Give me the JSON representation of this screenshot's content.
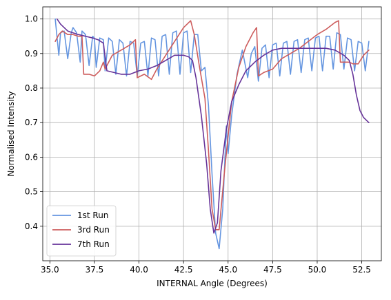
{
  "chart_data": {
    "type": "line",
    "title": "",
    "xlabel": "INTERNAL Angle (Degrees)",
    "ylabel": "Normalised Intensity",
    "xlim": [
      34.6,
      53.6
    ],
    "ylim": [
      0.3,
      1.035
    ],
    "xticks": [
      35.0,
      37.5,
      40.0,
      42.5,
      45.0,
      47.5,
      50.0,
      52.5
    ],
    "xtick_labels": [
      "35.0",
      "37.5",
      "40.0",
      "42.5",
      "45.0",
      "47.5",
      "50.0",
      "52.5"
    ],
    "yticks": [
      0.4,
      0.5,
      0.6,
      0.7,
      0.8,
      0.9,
      1.0
    ],
    "ytick_labels": [
      "0.4",
      "0.5",
      "0.6",
      "0.7",
      "0.8",
      "0.9",
      "1.0"
    ],
    "grid": true,
    "legend": {
      "position": "lower-left",
      "entries": [
        "1st Run",
        "3rd Run",
        "7th Run"
      ]
    },
    "series": [
      {
        "name": "1st Run",
        "color": "#6495e0",
        "x": [
          35.3,
          35.5,
          35.6,
          35.8,
          36.0,
          36.2,
          36.3,
          36.5,
          36.7,
          36.8,
          37.0,
          37.2,
          37.4,
          37.5,
          37.6,
          37.8,
          38.0,
          38.1,
          38.3,
          38.5,
          38.7,
          38.9,
          39.1,
          39.3,
          39.5,
          39.7,
          39.9,
          40.1,
          40.3,
          40.5,
          40.7,
          40.9,
          41.1,
          41.3,
          41.5,
          41.7,
          41.9,
          42.1,
          42.3,
          42.5,
          42.7,
          42.9,
          43.1,
          43.3,
          43.5,
          43.7,
          43.9,
          44.1,
          44.3,
          44.5,
          44.7,
          44.9,
          45.0,
          45.2,
          45.5,
          45.8,
          46.1,
          46.3,
          46.5,
          46.7,
          46.9,
          47.1,
          47.3,
          47.5,
          47.7,
          47.9,
          48.1,
          48.3,
          48.5,
          48.7,
          48.9,
          49.1,
          49.3,
          49.5,
          49.7,
          49.9,
          50.1,
          50.3,
          50.5,
          50.7,
          50.9,
          51.1,
          51.3,
          51.5,
          51.7,
          51.9,
          52.1,
          52.3,
          52.5,
          52.7,
          52.9
        ],
        "y": [
          1.0,
          0.895,
          0.96,
          0.965,
          0.885,
          0.96,
          0.975,
          0.96,
          0.875,
          0.965,
          0.955,
          0.865,
          0.95,
          0.945,
          0.86,
          0.945,
          0.94,
          0.85,
          0.945,
          0.935,
          0.84,
          0.94,
          0.93,
          0.835,
          0.935,
          0.93,
          0.835,
          0.93,
          0.935,
          0.835,
          0.945,
          0.94,
          0.835,
          0.95,
          0.955,
          0.84,
          0.96,
          0.965,
          0.84,
          0.96,
          0.965,
          0.845,
          0.955,
          0.955,
          0.85,
          0.86,
          0.75,
          0.55,
          0.38,
          0.335,
          0.45,
          0.69,
          0.61,
          0.72,
          0.84,
          0.91,
          0.83,
          0.9,
          0.92,
          0.82,
          0.915,
          0.925,
          0.83,
          0.925,
          0.93,
          0.835,
          0.93,
          0.935,
          0.84,
          0.935,
          0.94,
          0.845,
          0.94,
          0.945,
          0.85,
          0.945,
          0.95,
          0.85,
          0.95,
          0.95,
          0.855,
          0.96,
          0.955,
          0.855,
          0.945,
          0.94,
          0.85,
          0.935,
          0.93,
          0.85,
          0.935
        ]
      },
      {
        "name": "3rd Run",
        "color": "#cd5c5c",
        "x": [
          35.3,
          35.5,
          35.7,
          36.0,
          36.3,
          36.6,
          36.8,
          36.9,
          37.2,
          37.5,
          37.8,
          38.0,
          38.1,
          38.5,
          39.0,
          39.5,
          39.8,
          39.9,
          40.3,
          40.7,
          41.0,
          41.5,
          42.0,
          42.5,
          42.9,
          43.1,
          43.4,
          43.7,
          43.9,
          44.1,
          44.3,
          44.5,
          44.8,
          45.2,
          45.6,
          46.0,
          46.4,
          46.6,
          46.7,
          47.0,
          47.5,
          48.0,
          48.5,
          49.0,
          49.5,
          50.0,
          50.5,
          51.0,
          51.2,
          51.3,
          51.5,
          51.8,
          52.0,
          52.3,
          52.6,
          52.9
        ],
        "y": [
          0.935,
          0.955,
          0.965,
          0.955,
          0.955,
          0.95,
          0.95,
          0.84,
          0.84,
          0.835,
          0.85,
          0.875,
          0.855,
          0.895,
          0.91,
          0.925,
          0.94,
          0.83,
          0.84,
          0.825,
          0.855,
          0.895,
          0.935,
          0.975,
          0.995,
          0.955,
          0.86,
          0.77,
          0.62,
          0.45,
          0.39,
          0.39,
          0.56,
          0.76,
          0.86,
          0.92,
          0.96,
          0.975,
          0.835,
          0.845,
          0.855,
          0.885,
          0.9,
          0.915,
          0.935,
          0.955,
          0.97,
          0.99,
          0.995,
          0.875,
          0.875,
          0.875,
          0.87,
          0.87,
          0.895,
          0.91
        ]
      },
      {
        "name": "7th Run",
        "color": "#663399",
        "x": [
          35.4,
          35.6,
          35.8,
          36.0,
          36.3,
          36.6,
          37.0,
          37.4,
          37.7,
          38.0,
          38.2,
          38.6,
          39.0,
          39.5,
          40.0,
          40.5,
          41.0,
          41.5,
          42.0,
          42.5,
          42.8,
          43.0,
          43.2,
          43.5,
          43.8,
          44.0,
          44.2,
          44.4,
          44.6,
          44.9,
          45.2,
          45.6,
          46.0,
          46.5,
          47.0,
          47.5,
          48.0,
          48.5,
          49.0,
          49.5,
          50.0,
          50.5,
          51.0,
          51.5,
          51.8,
          52.0,
          52.2,
          52.4,
          52.6,
          52.8,
          52.9
        ],
        "y": [
          1.0,
          0.985,
          0.975,
          0.965,
          0.96,
          0.955,
          0.95,
          0.945,
          0.94,
          0.93,
          0.85,
          0.845,
          0.84,
          0.84,
          0.85,
          0.855,
          0.865,
          0.88,
          0.895,
          0.895,
          0.89,
          0.88,
          0.83,
          0.72,
          0.58,
          0.45,
          0.38,
          0.41,
          0.56,
          0.68,
          0.76,
          0.81,
          0.85,
          0.875,
          0.895,
          0.91,
          0.915,
          0.915,
          0.915,
          0.915,
          0.915,
          0.915,
          0.91,
          0.895,
          0.88,
          0.84,
          0.78,
          0.735,
          0.715,
          0.705,
          0.7
        ]
      }
    ]
  }
}
